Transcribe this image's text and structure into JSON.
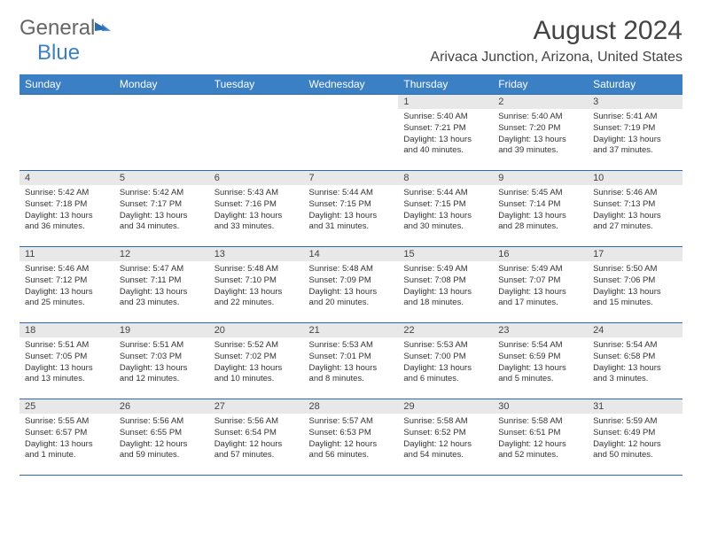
{
  "logo": {
    "part1": "General",
    "part2": "Blue"
  },
  "title": "August 2024",
  "location": "Arivaca Junction, Arizona, United States",
  "colors": {
    "header_bg": "#3b7fc4",
    "header_text": "#ffffff",
    "daynum_bg": "#e8e8e8",
    "border": "#2a6bb0",
    "text": "#333333",
    "title_text": "#444444"
  },
  "weekdays": [
    "Sunday",
    "Monday",
    "Tuesday",
    "Wednesday",
    "Thursday",
    "Friday",
    "Saturday"
  ],
  "weeks": [
    [
      {
        "empty": true
      },
      {
        "empty": true
      },
      {
        "empty": true
      },
      {
        "empty": true
      },
      {
        "n": "1",
        "sunrise": "5:40 AM",
        "sunset": "7:21 PM",
        "daylight": "13 hours and 40 minutes."
      },
      {
        "n": "2",
        "sunrise": "5:40 AM",
        "sunset": "7:20 PM",
        "daylight": "13 hours and 39 minutes."
      },
      {
        "n": "3",
        "sunrise": "5:41 AM",
        "sunset": "7:19 PM",
        "daylight": "13 hours and 37 minutes."
      }
    ],
    [
      {
        "n": "4",
        "sunrise": "5:42 AM",
        "sunset": "7:18 PM",
        "daylight": "13 hours and 36 minutes."
      },
      {
        "n": "5",
        "sunrise": "5:42 AM",
        "sunset": "7:17 PM",
        "daylight": "13 hours and 34 minutes."
      },
      {
        "n": "6",
        "sunrise": "5:43 AM",
        "sunset": "7:16 PM",
        "daylight": "13 hours and 33 minutes."
      },
      {
        "n": "7",
        "sunrise": "5:44 AM",
        "sunset": "7:15 PM",
        "daylight": "13 hours and 31 minutes."
      },
      {
        "n": "8",
        "sunrise": "5:44 AM",
        "sunset": "7:15 PM",
        "daylight": "13 hours and 30 minutes."
      },
      {
        "n": "9",
        "sunrise": "5:45 AM",
        "sunset": "7:14 PM",
        "daylight": "13 hours and 28 minutes."
      },
      {
        "n": "10",
        "sunrise": "5:46 AM",
        "sunset": "7:13 PM",
        "daylight": "13 hours and 27 minutes."
      }
    ],
    [
      {
        "n": "11",
        "sunrise": "5:46 AM",
        "sunset": "7:12 PM",
        "daylight": "13 hours and 25 minutes."
      },
      {
        "n": "12",
        "sunrise": "5:47 AM",
        "sunset": "7:11 PM",
        "daylight": "13 hours and 23 minutes."
      },
      {
        "n": "13",
        "sunrise": "5:48 AM",
        "sunset": "7:10 PM",
        "daylight": "13 hours and 22 minutes."
      },
      {
        "n": "14",
        "sunrise": "5:48 AM",
        "sunset": "7:09 PM",
        "daylight": "13 hours and 20 minutes."
      },
      {
        "n": "15",
        "sunrise": "5:49 AM",
        "sunset": "7:08 PM",
        "daylight": "13 hours and 18 minutes."
      },
      {
        "n": "16",
        "sunrise": "5:49 AM",
        "sunset": "7:07 PM",
        "daylight": "13 hours and 17 minutes."
      },
      {
        "n": "17",
        "sunrise": "5:50 AM",
        "sunset": "7:06 PM",
        "daylight": "13 hours and 15 minutes."
      }
    ],
    [
      {
        "n": "18",
        "sunrise": "5:51 AM",
        "sunset": "7:05 PM",
        "daylight": "13 hours and 13 minutes."
      },
      {
        "n": "19",
        "sunrise": "5:51 AM",
        "sunset": "7:03 PM",
        "daylight": "13 hours and 12 minutes."
      },
      {
        "n": "20",
        "sunrise": "5:52 AM",
        "sunset": "7:02 PM",
        "daylight": "13 hours and 10 minutes."
      },
      {
        "n": "21",
        "sunrise": "5:53 AM",
        "sunset": "7:01 PM",
        "daylight": "13 hours and 8 minutes."
      },
      {
        "n": "22",
        "sunrise": "5:53 AM",
        "sunset": "7:00 PM",
        "daylight": "13 hours and 6 minutes."
      },
      {
        "n": "23",
        "sunrise": "5:54 AM",
        "sunset": "6:59 PM",
        "daylight": "13 hours and 5 minutes."
      },
      {
        "n": "24",
        "sunrise": "5:54 AM",
        "sunset": "6:58 PM",
        "daylight": "13 hours and 3 minutes."
      }
    ],
    [
      {
        "n": "25",
        "sunrise": "5:55 AM",
        "sunset": "6:57 PM",
        "daylight": "13 hours and 1 minute."
      },
      {
        "n": "26",
        "sunrise": "5:56 AM",
        "sunset": "6:55 PM",
        "daylight": "12 hours and 59 minutes."
      },
      {
        "n": "27",
        "sunrise": "5:56 AM",
        "sunset": "6:54 PM",
        "daylight": "12 hours and 57 minutes."
      },
      {
        "n": "28",
        "sunrise": "5:57 AM",
        "sunset": "6:53 PM",
        "daylight": "12 hours and 56 minutes."
      },
      {
        "n": "29",
        "sunrise": "5:58 AM",
        "sunset": "6:52 PM",
        "daylight": "12 hours and 54 minutes."
      },
      {
        "n": "30",
        "sunrise": "5:58 AM",
        "sunset": "6:51 PM",
        "daylight": "12 hours and 52 minutes."
      },
      {
        "n": "31",
        "sunrise": "5:59 AM",
        "sunset": "6:49 PM",
        "daylight": "12 hours and 50 minutes."
      }
    ]
  ],
  "labels": {
    "sunrise": "Sunrise:",
    "sunset": "Sunset:",
    "daylight": "Daylight:"
  }
}
